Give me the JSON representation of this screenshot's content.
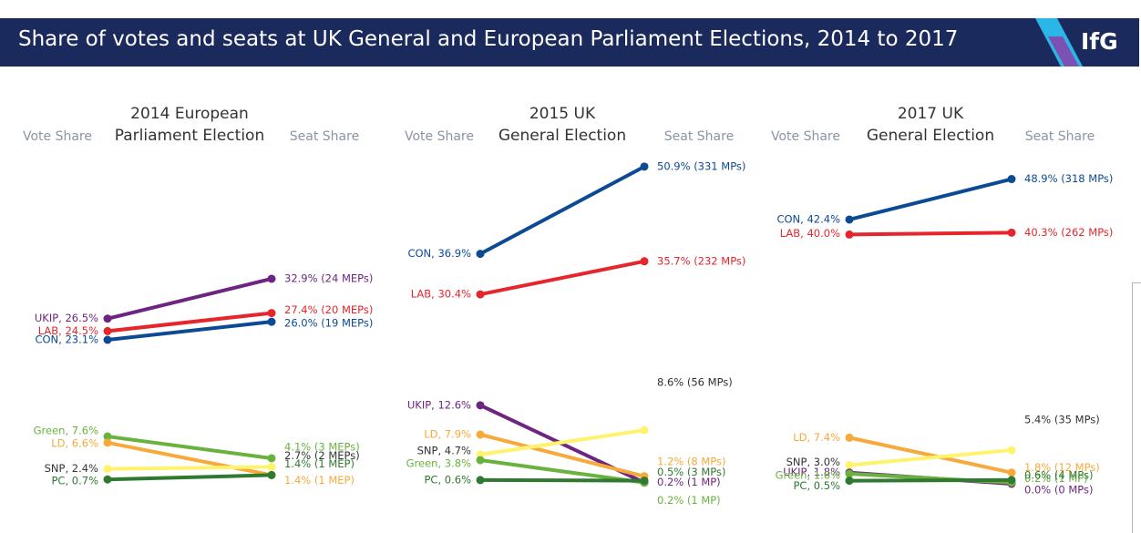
{
  "header": {
    "title": "Share of votes and seats at UK General and European Parliament Elections, 2014 to 2017",
    "logo": "IfG"
  },
  "colors": {
    "header_bg": "#1b2a5c",
    "CON": "#0d4a94",
    "LAB": "#e5262c",
    "UKIP": "#6e2581",
    "LD": "#f7a93b",
    "SNP": "#fff36d",
    "Green": "#6ab23e",
    "PC": "#2f7a30"
  },
  "chart_data": [
    {
      "type": "line",
      "title": "2014 European Parliament Election",
      "title_lines": [
        "2014 European",
        "Parliament Election"
      ],
      "x": [
        "Vote Share",
        "Seat Share"
      ],
      "series": [
        {
          "name": "UKIP",
          "values": [
            26.5,
            32.9
          ],
          "left_label": "UKIP, 26.5%",
          "right_label": "32.9% (24 MEPs)"
        },
        {
          "name": "LAB",
          "values": [
            24.5,
            27.4
          ],
          "left_label": "LAB, 24.5%",
          "right_label": "27.4% (20 MEPs)"
        },
        {
          "name": "CON",
          "values": [
            23.1,
            26.0
          ],
          "left_label": "CON, 23.1%",
          "right_label": "26.0% (19 MEPs)"
        },
        {
          "name": "Green",
          "values": [
            7.6,
            4.1
          ],
          "left_label": "Green, 7.6%",
          "right_label": "4.1% (3 MEPs)"
        },
        {
          "name": "LD",
          "values": [
            6.6,
            1.4
          ],
          "left_label": "LD, 6.6%",
          "right_label": "1.4% (1 MEP)"
        },
        {
          "name": "SNP",
          "values": [
            2.4,
            2.7
          ],
          "left_label": "SNP, 2.4%",
          "right_label": "2.7% (2 MEPs)"
        },
        {
          "name": "PC",
          "values": [
            0.7,
            1.4
          ],
          "left_label": "PC, 0.7%",
          "right_label": "1.4% (1 MEP)"
        }
      ]
    },
    {
      "type": "line",
      "title": "2015 UK General Election",
      "title_lines": [
        "2015 UK",
        "General Election"
      ],
      "x": [
        "Vote Share",
        "Seat Share"
      ],
      "series": [
        {
          "name": "CON",
          "values": [
            36.9,
            50.9
          ],
          "left_label": "CON, 36.9%",
          "right_label": "50.9% (331 MPs)"
        },
        {
          "name": "LAB",
          "values": [
            30.4,
            35.7
          ],
          "left_label": "LAB, 30.4%",
          "right_label": "35.7% (232 MPs)"
        },
        {
          "name": "UKIP",
          "values": [
            12.6,
            0.2
          ],
          "left_label": "UKIP, 12.6%",
          "right_label": "0.2% (1 MP)"
        },
        {
          "name": "LD",
          "values": [
            7.9,
            1.2
          ],
          "left_label": "LD, 7.9%",
          "right_label": "1.2% (8 MPs)"
        },
        {
          "name": "SNP",
          "values": [
            4.7,
            8.6
          ],
          "left_label": "SNP, 4.7%",
          "right_label": "8.6% (56 MPs)"
        },
        {
          "name": "Green",
          "values": [
            3.8,
            0.2
          ],
          "left_label": "Green, 3.8%",
          "right_label": "0.2% (1 MP)"
        },
        {
          "name": "PC",
          "values": [
            0.6,
            0.5
          ],
          "left_label": "PC, 0.6%",
          "right_label": "0.5% (3 MPs)"
        }
      ]
    },
    {
      "type": "line",
      "title": "2017 UK General Election",
      "title_lines": [
        "2017 UK",
        "General Election"
      ],
      "x": [
        "Vote Share",
        "Seat Share"
      ],
      "series": [
        {
          "name": "CON",
          "values": [
            42.4,
            48.9
          ],
          "left_label": "CON, 42.4%",
          "right_label": "48.9% (318 MPs)"
        },
        {
          "name": "LAB",
          "values": [
            40.0,
            40.3
          ],
          "left_label": "LAB, 40.0%",
          "right_label": "40.3% (262 MPs)"
        },
        {
          "name": "LD",
          "values": [
            7.4,
            1.8
          ],
          "left_label": "LD, 7.4%",
          "right_label": "1.8% (12 MPs)"
        },
        {
          "name": "SNP",
          "values": [
            3.0,
            5.4
          ],
          "left_label": "SNP, 3.0%",
          "right_label": "5.4% (35 MPs)"
        },
        {
          "name": "UKIP",
          "values": [
            1.8,
            0.0
          ],
          "left_label": "UKIP, 1.8%",
          "right_label": "0.0% (0 MPs)"
        },
        {
          "name": "Green",
          "values": [
            1.6,
            0.2
          ],
          "left_label": "Green, 1.6%",
          "right_label": "0.2% (1 MP)"
        },
        {
          "name": "PC",
          "values": [
            0.5,
            0.6
          ],
          "left_label": "PC, 0.5%",
          "right_label": "0.6% (4 MPs)"
        }
      ]
    }
  ]
}
